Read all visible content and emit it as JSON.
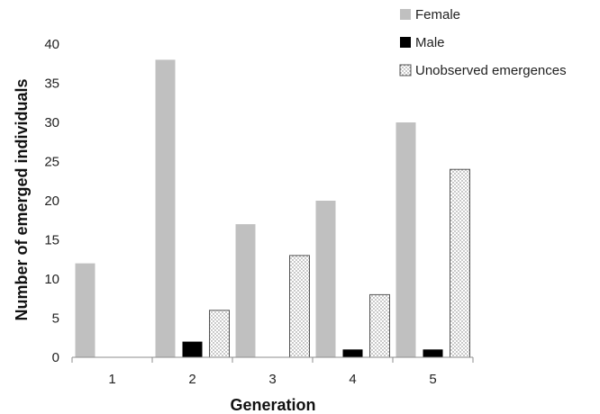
{
  "chart_data": {
    "type": "bar",
    "xlabel": "Generation",
    "ylabel": "Number of emerged individuals",
    "categories": [
      "1",
      "2",
      "3",
      "4",
      "5"
    ],
    "ylim": [
      0,
      40
    ],
    "yticks": [
      0,
      5,
      10,
      15,
      20,
      25,
      30,
      35,
      40
    ],
    "grid": false,
    "legend_position": "top-right",
    "series": [
      {
        "name": "Female",
        "color": "#c0c0c0",
        "pattern": "solid",
        "values": [
          12,
          38,
          17,
          20,
          30
        ]
      },
      {
        "name": "Male",
        "color": "#000000",
        "pattern": "solid",
        "values": [
          0,
          2,
          0,
          1,
          1
        ]
      },
      {
        "name": "Unobserved emergences",
        "color": "#ffffff",
        "pattern": "dotted",
        "values": [
          0,
          6,
          13,
          8,
          24
        ]
      }
    ]
  }
}
